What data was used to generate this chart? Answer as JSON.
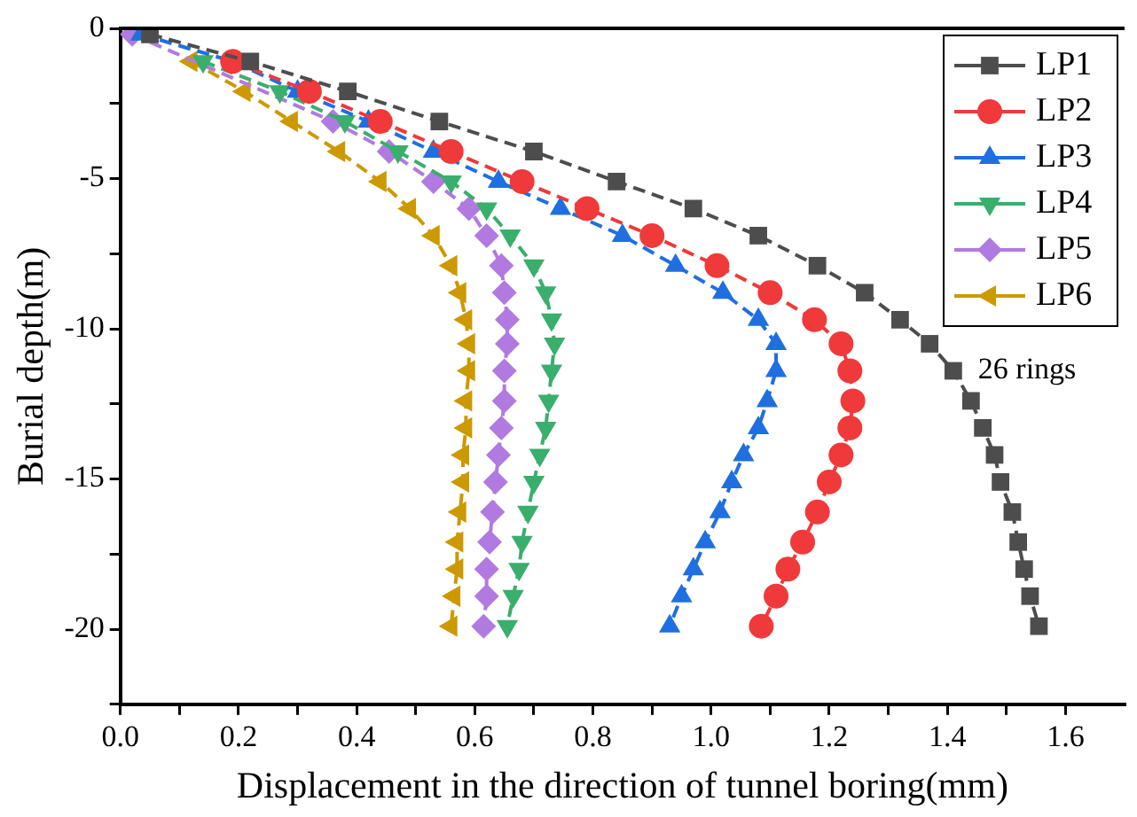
{
  "chart_data": {
    "type": "line",
    "xlabel": "Displacement in the direction of tunnel boring(mm)",
    "ylabel": "Burial depth(m)",
    "xlim": [
      0,
      1.7
    ],
    "ylim": [
      -22.5,
      0
    ],
    "xticks": [
      {
        "value": 0,
        "label": "0.0"
      },
      {
        "value": 0.1,
        "label": null
      },
      {
        "value": 0.2,
        "label": "0.2"
      },
      {
        "value": 0.3,
        "label": null
      },
      {
        "value": 0.4,
        "label": "0.4"
      },
      {
        "value": 0.5,
        "label": null
      },
      {
        "value": 0.6,
        "label": "0.6"
      },
      {
        "value": 0.7,
        "label": null
      },
      {
        "value": 0.8,
        "label": "0.8"
      },
      {
        "value": 0.9,
        "label": null
      },
      {
        "value": 1,
        "label": "1.0"
      },
      {
        "value": 1.1,
        "label": null
      },
      {
        "value": 1.2,
        "label": "1.2"
      },
      {
        "value": 1.3,
        "label": null
      },
      {
        "value": 1.4,
        "label": "1.4"
      },
      {
        "value": 1.5,
        "label": null
      },
      {
        "value": 1.6,
        "label": "1.6"
      }
    ],
    "yticks": [
      0,
      {
        "value": -2.5,
        "label": null
      },
      -5,
      {
        "value": -7.5,
        "label": null
      },
      -10,
      {
        "value": -12.5,
        "label": null
      },
      -15,
      {
        "value": -17.5,
        "label": null
      },
      -20,
      {
        "value": -22.5,
        "label": null
      }
    ],
    "grid": false,
    "legend": "top right",
    "line_style": "dashed",
    "annotations": [
      {
        "text": "26 rings",
        "x": 1.41,
        "y": -11.4
      }
    ],
    "series": [
      {
        "name": "LP1",
        "color": "#4d4d4d",
        "marker": "square",
        "x": [
          0.05,
          0.22,
          0.385,
          0.54,
          0.7,
          0.84,
          0.97,
          1.08,
          1.18,
          1.26,
          1.32,
          1.37,
          1.41,
          1.44,
          1.46,
          1.48,
          1.49,
          1.51,
          1.52,
          1.53,
          1.54,
          1.555
        ],
        "values": [
          -0.2,
          -1.1,
          -2.1,
          -3.1,
          -4.1,
          -5.1,
          -6.0,
          -6.9,
          -7.9,
          -8.8,
          -9.7,
          -10.5,
          -11.4,
          -12.4,
          -13.3,
          -14.2,
          -15.1,
          -16.1,
          -17.1,
          -18.0,
          -18.9,
          -19.9
        ]
      },
      {
        "name": "LP2",
        "color": "#f0393a",
        "marker": "circle",
        "x": [
          null,
          0.19,
          0.32,
          0.44,
          0.56,
          0.68,
          0.79,
          0.9,
          1.01,
          1.1,
          1.175,
          1.22,
          1.235,
          1.24,
          1.235,
          1.22,
          1.2,
          1.18,
          1.155,
          1.13,
          1.11,
          1.085
        ],
        "values": [
          null,
          -1.1,
          -2.1,
          -3.1,
          -4.1,
          -5.1,
          -6.0,
          -6.9,
          -7.9,
          -8.8,
          -9.7,
          -10.5,
          -11.4,
          -12.4,
          -13.3,
          -14.2,
          -15.1,
          -16.1,
          -17.1,
          -18.0,
          -18.9,
          -19.9
        ]
      },
      {
        "name": "LP3",
        "color": "#1f6fe0",
        "marker": "triangle",
        "x": [
          0.035,
          0.19,
          0.3,
          0.42,
          0.53,
          0.64,
          0.745,
          0.85,
          0.94,
          1.02,
          1.08,
          1.11,
          1.11,
          1.095,
          1.08,
          1.055,
          1.035,
          1.015,
          0.99,
          0.97,
          0.95,
          0.93
        ],
        "values": [
          -0.2,
          -1.1,
          -2.1,
          -3.1,
          -4.1,
          -5.1,
          -6.0,
          -6.9,
          -7.9,
          -8.8,
          -9.7,
          -10.5,
          -11.4,
          -12.4,
          -13.3,
          -14.2,
          -15.1,
          -16.1,
          -17.1,
          -18.0,
          -18.9,
          -19.9
        ]
      },
      {
        "name": "LP4",
        "color": "#3aae6d",
        "marker": "triangle-down",
        "x": [
          null,
          0.14,
          0.27,
          0.38,
          0.47,
          0.56,
          0.62,
          0.66,
          0.7,
          0.72,
          0.73,
          0.735,
          0.73,
          0.725,
          0.72,
          0.71,
          0.7,
          0.69,
          0.68,
          0.675,
          0.665,
          0.655
        ],
        "values": [
          null,
          -1.1,
          -2.1,
          -3.1,
          -4.1,
          -5.1,
          -6.0,
          -6.9,
          -7.9,
          -8.8,
          -9.7,
          -10.5,
          -11.4,
          -12.4,
          -13.3,
          -14.2,
          -15.1,
          -16.1,
          -17.1,
          -18.0,
          -18.9,
          -19.9
        ]
      },
      {
        "name": "LP5",
        "color": "#b07ae0",
        "marker": "diamond",
        "x": [
          0.02,
          null,
          null,
          0.36,
          0.455,
          0.53,
          0.59,
          0.62,
          0.645,
          0.65,
          0.655,
          0.655,
          0.65,
          0.65,
          0.645,
          0.64,
          0.635,
          0.63,
          0.625,
          0.62,
          0.62,
          0.615
        ],
        "values": [
          -0.2,
          null,
          null,
          -3.1,
          -4.1,
          -5.1,
          -6.0,
          -6.9,
          -7.9,
          -8.8,
          -9.7,
          -10.5,
          -11.4,
          -12.4,
          -13.3,
          -14.2,
          -15.1,
          -16.1,
          -17.1,
          -18.0,
          -18.9,
          -19.9
        ]
      },
      {
        "name": "LP6",
        "color": "#cc9900",
        "marker": "triangle-left",
        "x": [
          null,
          0.12,
          0.21,
          0.29,
          0.37,
          0.44,
          0.49,
          0.53,
          0.56,
          0.575,
          0.585,
          0.59,
          0.59,
          0.585,
          0.585,
          0.58,
          0.58,
          0.575,
          0.57,
          0.57,
          0.565,
          0.56
        ],
        "values": [
          null,
          -1.1,
          -2.1,
          -3.1,
          -4.1,
          -5.1,
          -6.0,
          -6.9,
          -7.9,
          -8.8,
          -9.7,
          -10.5,
          -11.4,
          -12.4,
          -13.3,
          -14.2,
          -15.1,
          -16.1,
          -17.1,
          -18.0,
          -18.9,
          -19.9
        ]
      }
    ]
  }
}
